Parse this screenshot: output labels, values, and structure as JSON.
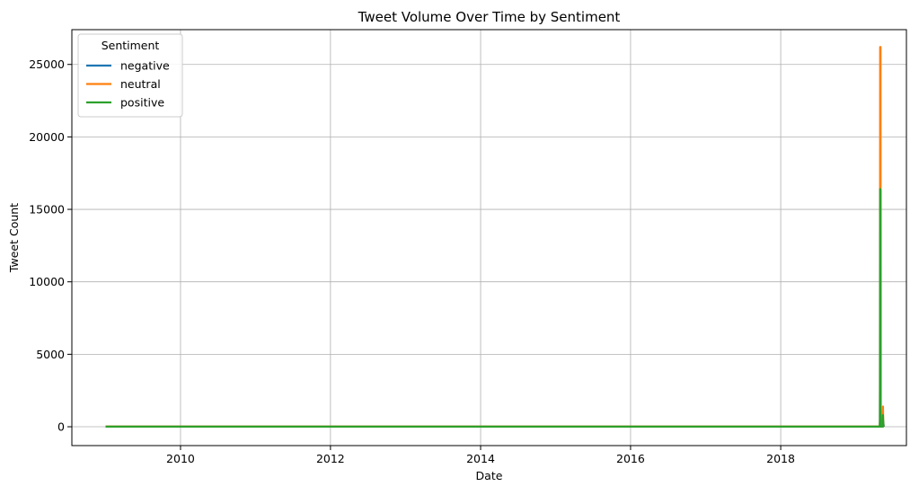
{
  "chart_data": {
    "type": "line",
    "title": "Tweet Volume Over Time by Sentiment",
    "xlabel": "Date",
    "ylabel": "Tweet Count",
    "x_type": "date",
    "xlim": [
      "2008-07-21",
      "2019-09-05"
    ],
    "ylim": [
      -1300,
      27400
    ],
    "x_ticks": [
      "2010-01-01",
      "2012-01-01",
      "2014-01-01",
      "2016-01-01",
      "2018-01-01"
    ],
    "x_tick_labels": [
      "2010",
      "2012",
      "2014",
      "2016",
      "2018"
    ],
    "y_ticks": [
      0,
      5000,
      10000,
      15000,
      20000,
      25000
    ],
    "y_tick_labels": [
      "0",
      "5000",
      "10000",
      "15000",
      "20000",
      "25000"
    ],
    "grid": true,
    "legend": {
      "title": "Sentiment",
      "placement": "top-left"
    },
    "series": [
      {
        "name": "negative",
        "color": "#1f77b4",
        "points": [
          [
            "2009-01-01",
            5
          ],
          [
            "2019-04-28",
            5
          ],
          [
            "2019-04-29",
            300
          ],
          [
            "2019-04-30",
            6200
          ],
          [
            "2019-05-02",
            400
          ],
          [
            "2019-05-04",
            5
          ],
          [
            "2019-05-14",
            5
          ],
          [
            "2019-05-15",
            400
          ],
          [
            "2019-05-18",
            5
          ]
        ]
      },
      {
        "name": "neutral",
        "color": "#ff7f0e",
        "points": [
          [
            "2009-01-01",
            20
          ],
          [
            "2019-04-28",
            20
          ],
          [
            "2019-04-29",
            500
          ],
          [
            "2019-04-30",
            26200
          ],
          [
            "2019-05-01",
            26100
          ],
          [
            "2019-05-02",
            26200
          ],
          [
            "2019-05-03",
            20
          ],
          [
            "2019-05-12",
            20
          ],
          [
            "2019-05-14",
            1400
          ],
          [
            "2019-05-15",
            300
          ],
          [
            "2019-05-17",
            20
          ]
        ]
      },
      {
        "name": "positive",
        "color": "#2ca02c",
        "points": [
          [
            "2009-01-01",
            10
          ],
          [
            "2019-04-28",
            10
          ],
          [
            "2019-04-29",
            400
          ],
          [
            "2019-04-30",
            16400
          ],
          [
            "2019-05-01",
            16400
          ],
          [
            "2019-05-02",
            16300
          ],
          [
            "2019-05-03",
            10
          ],
          [
            "2019-05-13",
            10
          ],
          [
            "2019-05-14",
            800
          ],
          [
            "2019-05-16",
            10
          ]
        ]
      }
    ]
  }
}
